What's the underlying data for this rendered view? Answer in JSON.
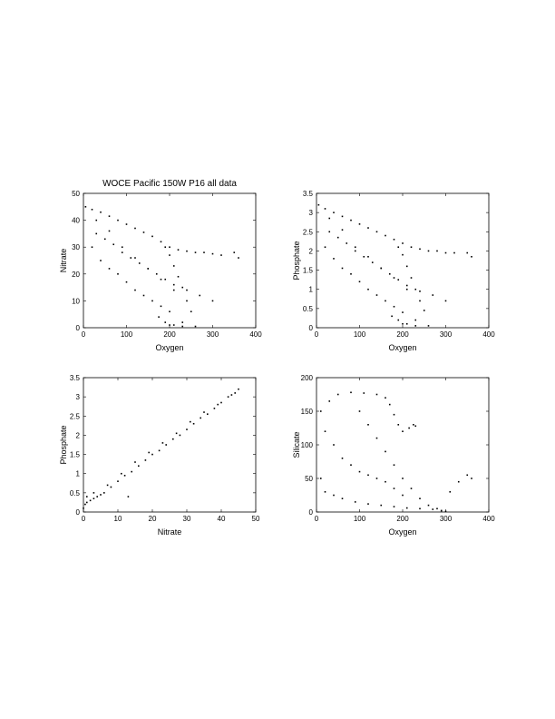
{
  "page": {
    "title": "WOCE Pacific 150W  P16 all data"
  },
  "chart_data": [
    {
      "type": "scatter",
      "xlabel": "Oxygen",
      "ylabel": "Nitrate",
      "xlim": [
        0,
        400
      ],
      "ylim": [
        0,
        50
      ],
      "xticks": [
        0,
        100,
        200,
        300,
        400
      ],
      "yticks": [
        0,
        10,
        20,
        30,
        40,
        50
      ],
      "grid": false,
      "series": [
        {
          "x": [
            5,
            20,
            40,
            60,
            80,
            100,
            120,
            140,
            160,
            180,
            200,
            220,
            240,
            260,
            280,
            300,
            320,
            350,
            360,
            190,
            200,
            210,
            220,
            230,
            240,
            250,
            230,
            210,
            190,
            175,
            200,
            230,
            260,
            30,
            50,
            70,
            90,
            110,
            130,
            150,
            170,
            190,
            210,
            240,
            270,
            300,
            20,
            40,
            60,
            80,
            100,
            120,
            140,
            160,
            180,
            200,
            30,
            60,
            90,
            120,
            150,
            180,
            210
          ],
          "y": [
            45,
            44,
            43,
            41.5,
            40,
            38.5,
            37,
            35.5,
            34,
            32,
            30,
            29,
            28.5,
            28,
            28,
            27.5,
            27,
            28,
            26,
            30,
            27,
            23,
            19,
            15,
            10,
            6,
            2,
            1,
            2,
            4,
            1,
            0.5,
            0.5,
            35,
            33,
            31,
            28,
            26,
            24,
            22,
            20,
            18,
            16,
            14,
            12,
            10,
            30,
            25,
            22,
            20,
            17,
            14,
            12,
            10,
            8,
            6,
            40,
            36,
            30,
            26,
            22,
            18,
            14
          ]
        }
      ]
    },
    {
      "type": "scatter",
      "xlabel": "Oxygen",
      "ylabel": "Phosphate",
      "xlim": [
        0,
        400
      ],
      "ylim": [
        0,
        3.5
      ],
      "xticks": [
        0,
        100,
        200,
        300,
        400
      ],
      "yticks": [
        0,
        0.5,
        1,
        1.5,
        2,
        2.5,
        3,
        3.5
      ],
      "grid": false,
      "series": [
        {
          "x": [
            5,
            20,
            40,
            60,
            80,
            100,
            120,
            140,
            160,
            180,
            200,
            220,
            240,
            260,
            280,
            300,
            320,
            350,
            360,
            190,
            200,
            210,
            220,
            230,
            240,
            250,
            230,
            210,
            190,
            175,
            200,
            230,
            260,
            30,
            50,
            70,
            90,
            110,
            130,
            150,
            170,
            190,
            210,
            240,
            270,
            300,
            20,
            40,
            60,
            80,
            100,
            120,
            140,
            160,
            180,
            200,
            30,
            60,
            90,
            120,
            150,
            180,
            210
          ],
          "y": [
            3.2,
            3.1,
            3.0,
            2.9,
            2.8,
            2.7,
            2.6,
            2.5,
            2.4,
            2.3,
            2.2,
            2.1,
            2.05,
            2.0,
            2.0,
            1.95,
            1.95,
            1.95,
            1.85,
            2.1,
            1.9,
            1.6,
            1.3,
            1.0,
            0.7,
            0.45,
            0.2,
            0.1,
            0.2,
            0.3,
            0.1,
            0.05,
            0.05,
            2.5,
            2.35,
            2.2,
            2.0,
            1.85,
            1.7,
            1.55,
            1.4,
            1.25,
            1.1,
            0.95,
            0.85,
            0.7,
            2.1,
            1.8,
            1.55,
            1.4,
            1.2,
            1.0,
            0.85,
            0.7,
            0.55,
            0.4,
            2.85,
            2.55,
            2.1,
            1.85,
            1.55,
            1.3,
            1.0
          ]
        }
      ]
    },
    {
      "type": "scatter",
      "xlabel": "Nitrate",
      "ylabel": "Phosphate",
      "xlim": [
        0,
        50
      ],
      "ylim": [
        0,
        3.5
      ],
      "xticks": [
        0,
        10,
        20,
        30,
        40,
        50
      ],
      "yticks": [
        0,
        0.5,
        1,
        1.5,
        2,
        2.5,
        3,
        3.5
      ],
      "grid": false,
      "series": [
        {
          "x": [
            0,
            0.5,
            1,
            2,
            3,
            4,
            5,
            6,
            8,
            10,
            12,
            14,
            16,
            18,
            20,
            22,
            24,
            26,
            28,
            30,
            32,
            34,
            36,
            38,
            40,
            42,
            44,
            45,
            1,
            3,
            7,
            11,
            15,
            19,
            23,
            27,
            31,
            35,
            39,
            43,
            13
          ],
          "y": [
            0.1,
            0.2,
            0.25,
            0.3,
            0.35,
            0.4,
            0.45,
            0.5,
            0.65,
            0.8,
            0.95,
            1.05,
            1.2,
            1.35,
            1.5,
            1.6,
            1.75,
            1.9,
            2.0,
            2.15,
            2.3,
            2.45,
            2.55,
            2.7,
            2.85,
            3.0,
            3.1,
            3.2,
            0.4,
            0.5,
            0.7,
            1.0,
            1.3,
            1.55,
            1.8,
            2.05,
            2.35,
            2.6,
            2.8,
            3.05,
            0.4
          ]
        }
      ]
    },
    {
      "type": "scatter",
      "xlabel": "Oxygen",
      "ylabel": "Silicate",
      "xlim": [
        0,
        400
      ],
      "ylim": [
        0,
        200
      ],
      "xticks": [
        0,
        100,
        200,
        300,
        400
      ],
      "yticks": [
        0,
        50,
        100,
        150,
        200
      ],
      "grid": false,
      "series": [
        {
          "x": [
            10,
            30,
            50,
            80,
            110,
            140,
            160,
            170,
            180,
            190,
            200,
            215,
            225,
            230,
            10,
            20,
            40,
            60,
            90,
            120,
            150,
            180,
            210,
            240,
            270,
            290,
            300,
            310,
            330,
            350,
            360,
            100,
            120,
            140,
            160,
            180,
            200,
            220,
            240,
            260,
            280,
            290,
            20,
            40,
            60,
            80,
            100,
            120,
            140,
            160,
            180,
            200
          ],
          "y": [
            150,
            165,
            175,
            178,
            177,
            175,
            170,
            160,
            145,
            130,
            120,
            125,
            130,
            128,
            50,
            30,
            25,
            20,
            15,
            12,
            10,
            8,
            6,
            5,
            4,
            2,
            1,
            30,
            45,
            55,
            50,
            150,
            130,
            110,
            90,
            70,
            50,
            35,
            20,
            10,
            5,
            2,
            120,
            100,
            80,
            70,
            60,
            55,
            50,
            45,
            35,
            25
          ]
        }
      ]
    }
  ]
}
